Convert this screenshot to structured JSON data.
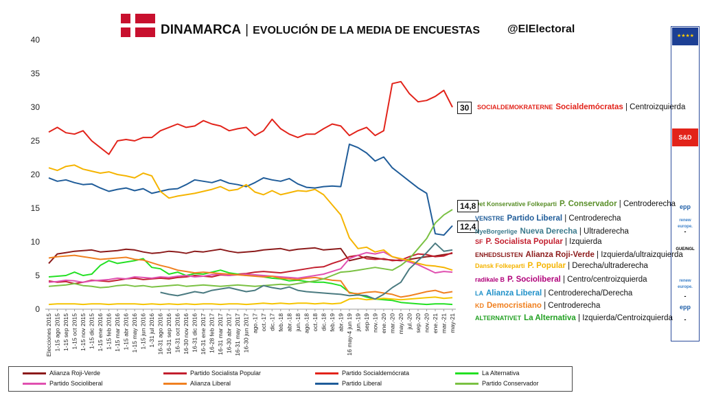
{
  "header": {
    "country": "DINAMARCA",
    "separator": "|",
    "subtitle": "EVOLUCIÓN DE LA MEDIA DE ENCUESTAS",
    "handle": "@ElElectoral"
  },
  "eu_panel": {
    "groups": [
      "S&D",
      "epp",
      "renew europe.",
      "-",
      "GUE/NGL",
      "renew europe.",
      "-",
      "epp",
      "-"
    ]
  },
  "parties": [
    {
      "logo": "SOCIALDEMOKRATERNE",
      "name": "Socialdemócratas",
      "ideology": "| Centroizquierda",
      "color": "#e2231a",
      "value_box": "30"
    },
    {
      "logo": "Det Konservative Folkeparti",
      "name": "P. Conservador",
      "ideology": "| Centroderecha",
      "color": "#5a8f29",
      "value_box": "14,8"
    },
    {
      "logo": "VENSTRE",
      "name": "Partido Liberal",
      "ideology": "| Centroderecha",
      "color": "#1f5c99",
      "value_box": "12,4"
    },
    {
      "logo": "NyeBorgerlige",
      "name": "Nueva Derecha",
      "ideology": "| Ultraderecha",
      "color": "#3b7a8c",
      "value_box": ""
    },
    {
      "logo": "SF",
      "name": "P. Socialista Popular",
      "ideology": "| Izquierda",
      "color": "#c21f2e",
      "value_box": ""
    },
    {
      "logo": "ENHEDSLISTEN",
      "name": "Alianza Roji-Verde",
      "ideology": "| Izquierda/ultraizquierda",
      "color": "#8b1a1a",
      "value_box": ""
    },
    {
      "logo": "Dansk Folkeparti",
      "name": "P. Popular",
      "ideology": "| Derecha/ultraderecha",
      "color": "#f5b400",
      "value_box": ""
    },
    {
      "logo": "radikale B",
      "name": "P. Socioliberal",
      "ideology": "| Centro/centroizquierda",
      "color": "#b0007a",
      "value_box": ""
    },
    {
      "logo": "LA",
      "name": "Alianza Liberal",
      "ideology": "| Centroderecha/Derecha",
      "color": "#1e90c8",
      "value_box": ""
    },
    {
      "logo": "KD",
      "name": "Democristiano",
      "ideology": "| Centroderecha",
      "color": "#f08020",
      "value_box": ""
    },
    {
      "logo": "ALTERNATIVET",
      "name": "La Alternativa",
      "ideology": "| Izquierda/Centroizquierda",
      "color": "#22a022",
      "value_box": ""
    }
  ],
  "chart_data": {
    "type": "line",
    "ylim": [
      0,
      40
    ],
    "yticks": [
      0,
      5,
      10,
      15,
      20,
      25,
      30,
      35,
      40
    ],
    "categories": [
      "Elecciones 2015",
      "1-15 ago 2015",
      "1-15 sep 2015",
      "1-15 oct 2015",
      "1-15 nov 2015",
      "1-15 dic 2015",
      "1-15 ene 2016",
      "1-15 feb 2016",
      "1-15 mar 2016",
      "1-15 abr 2016",
      "1-15 may 2016",
      "1-15 jun 2016",
      "1-31 jul 2016",
      "16-31 ago 2016",
      "16-31 sep 2016",
      "16-31 oct 2016",
      "16-30 nov 2016",
      "16-31 dic 2016",
      "16-31 ene 2017",
      "16-28 feb 2017",
      "16-31 mar 2017",
      "16-30 abr 2017",
      "16-31 may 2017",
      "16-30 jun 2017",
      "ago.-17",
      "oct.-17",
      "dic.-17",
      "feb.-18",
      "abr.-18",
      "jun.-18",
      "ago.-18",
      "oct.-18",
      "dic.-18",
      "feb.-19",
      "abr.-19",
      "16 may-4 jun 19",
      "jun.-19",
      "sep-19",
      "nov.-19",
      "ene.-20",
      "mar.-20",
      "may.-20",
      "jul.-20",
      "sep.-20",
      "nov.-20",
      "ene.-21",
      "mar.-21",
      "may-21"
    ],
    "series": [
      {
        "name": "Alianza Roji-Verde",
        "color": "#8b1a1a",
        "values": [
          6.8,
          8.2,
          8.4,
          8.6,
          8.7,
          8.8,
          8.5,
          8.6,
          8.7,
          8.9,
          8.8,
          8.5,
          8.3,
          8.4,
          8.6,
          8.5,
          8.3,
          8.6,
          8.5,
          8.7,
          8.9,
          8.6,
          8.4,
          8.5,
          8.6,
          8.8,
          8.9,
          9.0,
          8.7,
          8.9,
          9.0,
          9.1,
          8.8,
          8.9,
          9.0,
          7.2,
          7.5,
          7.8,
          7.6,
          7.4,
          7.3,
          7.2,
          7.4,
          7.6,
          7.8,
          7.9,
          8.1,
          8.3
        ]
      },
      {
        "name": "Partido Socialista Popular",
        "color": "#c21f2e",
        "values": [
          4.2,
          4.0,
          4.1,
          3.8,
          4.0,
          4.3,
          4.2,
          4.1,
          4.3,
          4.5,
          4.6,
          4.4,
          4.5,
          4.6,
          4.5,
          4.7,
          4.8,
          5.0,
          4.9,
          4.8,
          5.1,
          5.0,
          5.2,
          5.3,
          5.5,
          5.6,
          5.5,
          5.4,
          5.6,
          5.8,
          6.0,
          6.2,
          6.3,
          6.8,
          7.2,
          7.8,
          8.0,
          7.5,
          7.4,
          7.5,
          7.2,
          7.3,
          7.8,
          8.2,
          8.1,
          7.8,
          7.9,
          8.4
        ]
      },
      {
        "name": "Partido Socialdemócrata",
        "color": "#e2231a",
        "values": [
          26.3,
          27.0,
          26.2,
          26.0,
          26.5,
          25.0,
          24.0,
          23.0,
          25.0,
          25.2,
          25.0,
          25.5,
          25.5,
          26.5,
          27.0,
          27.5,
          27.0,
          27.2,
          28.0,
          27.5,
          27.2,
          26.5,
          26.8,
          27.0,
          25.8,
          26.5,
          28.2,
          26.8,
          26.0,
          25.5,
          26.0,
          26.0,
          26.8,
          27.5,
          27.2,
          25.8,
          26.5,
          27.0,
          25.8,
          26.5,
          33.5,
          33.8,
          32.0,
          30.8,
          31.0,
          31.6,
          32.5,
          30.0
        ]
      },
      {
        "name": "La Alternativa",
        "color": "#22e022",
        "values": [
          4.8,
          4.9,
          5.0,
          5.5,
          5.0,
          5.2,
          6.5,
          7.2,
          6.8,
          7.0,
          7.2,
          7.5,
          6.2,
          6.0,
          5.2,
          5.5,
          5.0,
          5.3,
          5.2,
          5.5,
          5.8,
          5.4,
          5.2,
          5.0,
          5.1,
          4.8,
          4.6,
          4.5,
          4.2,
          4.3,
          4.1,
          4.0,
          4.0,
          3.8,
          3.5,
          2.5,
          2.2,
          1.8,
          1.5,
          1.4,
          1.3,
          1.0,
          0.9,
          0.8,
          0.7,
          0.8,
          0.8,
          0.7
        ]
      },
      {
        "name": "Partido Socioliberal",
        "color": "#e050b0",
        "values": [
          4.0,
          4.1,
          4.3,
          4.2,
          4.0,
          4.2,
          4.3,
          4.4,
          4.6,
          4.5,
          4.8,
          4.7,
          4.6,
          4.8,
          4.7,
          4.9,
          5.0,
          4.8,
          4.9,
          5.1,
          5.2,
          5.0,
          5.1,
          5.2,
          5.1,
          5.0,
          4.9,
          4.8,
          4.7,
          4.6,
          4.8,
          5.0,
          5.2,
          5.6,
          6.0,
          7.5,
          8.0,
          8.4,
          8.2,
          8.5,
          7.8,
          7.4,
          7.0,
          6.6,
          6.0,
          5.4,
          5.6,
          5.5
        ]
      },
      {
        "name": "Alianza Liberal",
        "color": "#f08020",
        "values": [
          7.6,
          7.8,
          7.9,
          8.0,
          7.8,
          7.6,
          7.4,
          7.5,
          7.6,
          7.7,
          7.4,
          7.3,
          6.9,
          6.5,
          6.2,
          5.8,
          5.6,
          5.4,
          5.5,
          5.4,
          5.3,
          5.2,
          5.1,
          5.0,
          4.9,
          4.8,
          4.9,
          4.6,
          4.5,
          4.4,
          4.6,
          4.7,
          4.5,
          4.3,
          4.2,
          2.4,
          2.3,
          2.5,
          2.6,
          2.4,
          2.2,
          1.8,
          2.0,
          2.3,
          2.6,
          2.8,
          2.4,
          2.6
        ]
      },
      {
        "name": "Partido Liberal",
        "color": "#1f5c99",
        "values": [
          19.5,
          19.0,
          19.2,
          18.8,
          18.5,
          18.6,
          18.0,
          17.5,
          17.8,
          18.0,
          17.6,
          17.9,
          17.2,
          17.5,
          17.8,
          17.9,
          18.5,
          19.2,
          19.0,
          18.8,
          19.2,
          18.7,
          18.5,
          18.2,
          18.8,
          19.5,
          19.2,
          19.0,
          19.4,
          18.6,
          18.1,
          18.0,
          18.2,
          18.3,
          18.2,
          24.5,
          24.0,
          23.2,
          22.0,
          22.6,
          21.0,
          20.0,
          19.0,
          18.0,
          17.2,
          11.2,
          11.0,
          12.4
        ]
      },
      {
        "name": "Partido Conservador",
        "color": "#7ac142",
        "values": [
          3.4,
          3.5,
          3.6,
          3.8,
          3.5,
          3.4,
          3.2,
          3.3,
          3.5,
          3.6,
          3.4,
          3.5,
          3.3,
          3.4,
          3.5,
          3.6,
          3.4,
          3.5,
          3.6,
          3.5,
          3.4,
          3.5,
          3.6,
          3.5,
          3.4,
          3.5,
          3.6,
          3.7,
          3.6,
          3.8,
          4.0,
          4.2,
          4.5,
          5.0,
          5.5,
          5.6,
          5.8,
          6.0,
          6.2,
          6.0,
          5.8,
          6.5,
          7.5,
          9.0,
          10.5,
          12.8,
          14.0,
          14.8
        ]
      },
      {
        "name": "Partido Popular",
        "color": "#f5b400",
        "values": [
          21.0,
          20.6,
          21.2,
          21.4,
          20.8,
          20.5,
          20.2,
          20.4,
          20.0,
          19.8,
          19.5,
          20.2,
          19.8,
          17.5,
          16.5,
          16.8,
          17.0,
          17.2,
          17.5,
          17.8,
          18.2,
          17.6,
          17.8,
          18.5,
          17.4,
          17.0,
          17.6,
          17.0,
          17.3,
          17.6,
          17.5,
          17.8,
          17.0,
          15.5,
          14.0,
          10.6,
          9.0,
          9.2,
          8.5,
          8.8,
          7.8,
          7.5,
          7.2,
          6.8,
          6.5,
          6.4,
          6.2,
          5.8
        ]
      },
      {
        "name": "Democristiano",
        "color": "#f5c400",
        "values": [
          0.7,
          0.8,
          0.8,
          0.8,
          0.7,
          0.8,
          0.8,
          0.7,
          0.8,
          0.8,
          0.8,
          0.7,
          0.8,
          0.7,
          0.8,
          0.7,
          0.8,
          0.7,
          0.8,
          0.8,
          0.7,
          0.8,
          0.8,
          0.7,
          0.8,
          0.9,
          0.8,
          0.9,
          0.8,
          0.9,
          0.9,
          0.8,
          0.9,
          0.8,
          0.9,
          1.5,
          1.6,
          1.4,
          1.5,
          1.6,
          1.5,
          1.4,
          1.5,
          1.6,
          1.7,
          1.8,
          1.6,
          1.7
        ]
      },
      {
        "name": "Nueva Derecha",
        "color": "#4a7a80",
        "values": [
          null,
          null,
          null,
          null,
          null,
          null,
          null,
          null,
          null,
          null,
          null,
          null,
          null,
          2.5,
          2.2,
          2.0,
          2.3,
          2.6,
          2.4,
          2.8,
          3.0,
          3.2,
          2.9,
          2.6,
          2.8,
          3.5,
          3.2,
          3.0,
          3.3,
          2.8,
          2.6,
          2.5,
          2.4,
          2.3,
          2.2,
          2.0,
          2.1,
          2.0,
          1.5,
          2.2,
          3.2,
          4.0,
          6.0,
          7.2,
          8.4,
          9.8,
          8.6,
          8.8
        ]
      }
    ]
  },
  "legend": [
    {
      "label": "Alianza Roji-Verde",
      "color": "#8b1a1a"
    },
    {
      "label": "Partido Socialista Popular",
      "color": "#c21f2e"
    },
    {
      "label": "Partido Socialdemócrata",
      "color": "#e2231a"
    },
    {
      "label": "La Alternativa",
      "color": "#22e022"
    },
    {
      "label": "Partido Socioliberal",
      "color": "#e050b0"
    },
    {
      "label": "Alianza Liberal",
      "color": "#f08020"
    },
    {
      "label": "Partido Liberal",
      "color": "#1f5c99"
    },
    {
      "label": "Partido Conservador",
      "color": "#7ac142"
    }
  ]
}
